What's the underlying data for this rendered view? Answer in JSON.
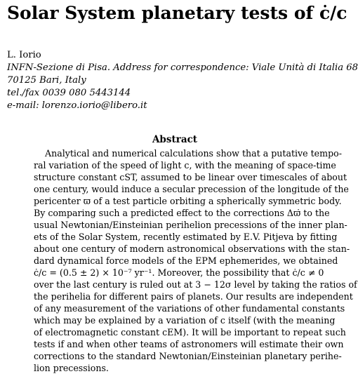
{
  "paper": {
    "title": "Solar System planetary tests of ċ/c",
    "author": "L. Iorio",
    "affiliation": [
      "INFN-Sezione di Pisa. Address for correspondence: Viale Unità di Italia 68",
      "70125 Bari, Italy",
      "tel./fax 0039 080 5443144",
      "e-mail: lorenzo.iorio@libero.it"
    ],
    "abstract_heading": "Abstract",
    "abstract_lines": [
      "Analytical and numerical calculations show that a putative tempo-",
      "ral variation of the speed of light c, with the meaning of space-time",
      "structure constant cST, assumed to be linear over timescales of about",
      "one century, would induce a secular precession of the longitude of the",
      "pericenter ϖ of a test particle orbiting a spherically symmetric body.",
      "By comparing such a predicted effect to the corrections Δϖ̇ to the",
      "usual Newtonian/Einsteinian perihelion precessions of the inner plan-",
      "ets of the Solar System, recently estimated by E.V. Pitjeva by fitting",
      "about one century of modern astronomical observations with the stan-",
      "dard dynamical force models of the EPM ephemerides, we obtained",
      "ċ/c = (0.5 ± 2) × 10⁻⁷ yr⁻¹.  Moreover, the possibility that ċ/c ≠ 0",
      "over the last century is ruled out at 3 − 12σ level by taking the ratios of",
      "the perihelia for different pairs of planets. Our results are independent",
      "of any measurement of the variations of other fundamental constants",
      "which may be explained by a variation of c itself (with the meaning",
      "of electromagnetic constant cEM). It will be important to repeat such",
      "tests if and when other teams of astronomers will estimate their own",
      "corrections to the standard Newtonian/Einsteinian planetary perihe-",
      "lion precessions."
    ]
  }
}
